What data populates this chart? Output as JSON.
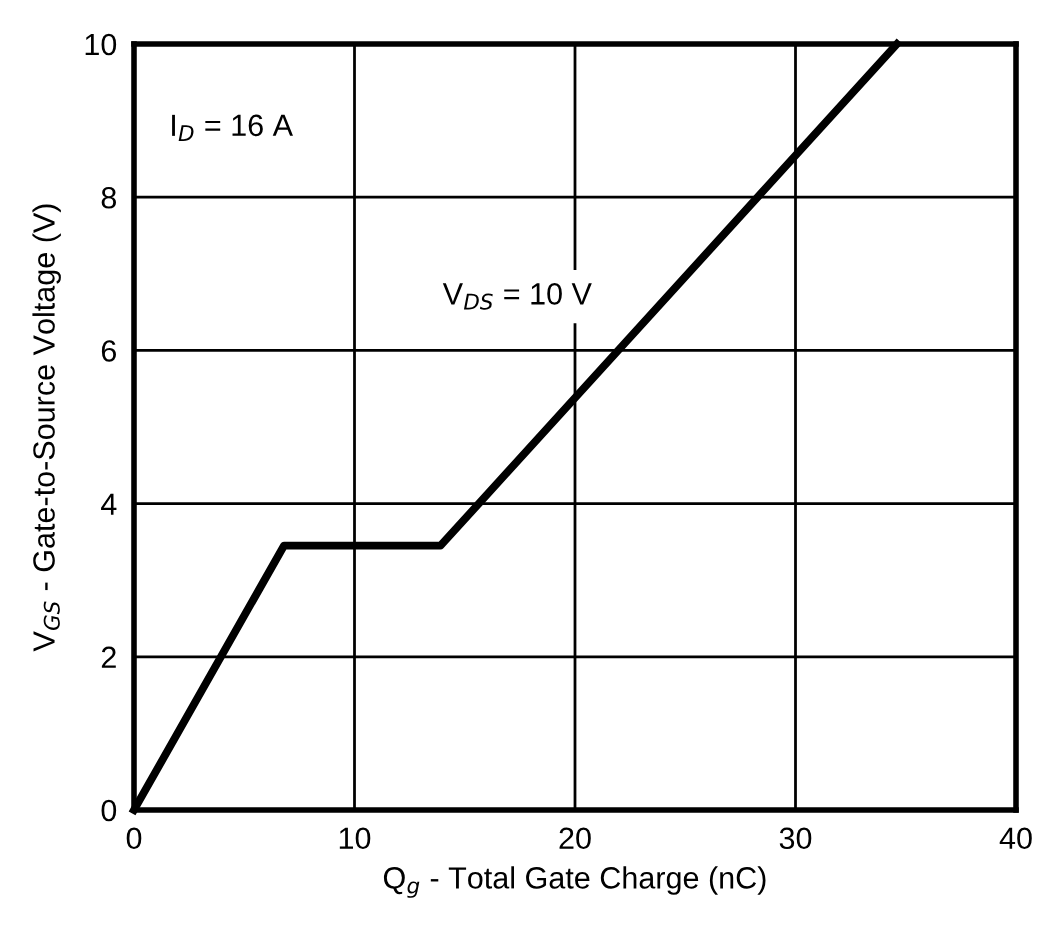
{
  "chart_data": {
    "type": "line",
    "xlabel": "Q$_{g}$ - Total Gate Charge (nC)",
    "ylabel": "V$_{GS}$ - Gate-to-Source Voltage (V)",
    "x": [
      0,
      6.8,
      13.9,
      34.6
    ],
    "series": [
      {
        "color": "#000000",
        "values": [
          0,
          3.45,
          3.45,
          10
        ]
      }
    ],
    "xlim": [
      0,
      40
    ],
    "ylim": [
      0,
      10
    ],
    "xticks": [
      0,
      10,
      20,
      30,
      40
    ],
    "yticks": [
      0,
      2,
      4,
      6,
      8,
      10
    ],
    "grid": true,
    "line_style": "solid",
    "marker": "none",
    "annotations": [
      "I$_{D}$ = 16 A",
      "V$_{DS}$ = 10 V"
    ]
  }
}
